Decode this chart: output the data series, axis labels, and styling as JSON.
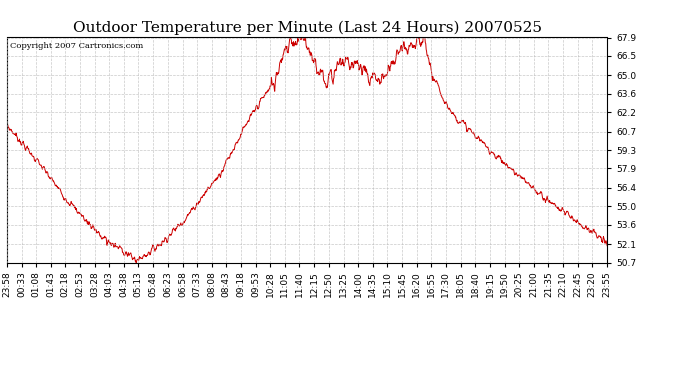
{
  "title": "Outdoor Temperature per Minute (Last 24 Hours) 20070525",
  "copyright_text": "Copyright 2007 Cartronics.com",
  "line_color": "#cc0000",
  "background_color": "#ffffff",
  "plot_bg_color": "#ffffff",
  "grid_color": "#bbbbbb",
  "ylim": [
    50.7,
    67.9
  ],
  "yticks": [
    50.7,
    52.1,
    53.6,
    55.0,
    56.4,
    57.9,
    59.3,
    60.7,
    62.2,
    63.6,
    65.0,
    66.5,
    67.9
  ],
  "title_fontsize": 11,
  "tick_fontsize": 6.5,
  "copyright_fontsize": 6,
  "x_tick_labels": [
    "23:58",
    "00:33",
    "01:08",
    "01:43",
    "02:18",
    "02:53",
    "03:28",
    "04:03",
    "04:38",
    "05:13",
    "05:48",
    "06:23",
    "06:58",
    "07:33",
    "08:08",
    "08:43",
    "09:18",
    "09:53",
    "10:28",
    "11:05",
    "11:40",
    "12:15",
    "12:50",
    "13:25",
    "14:00",
    "14:35",
    "15:10",
    "15:45",
    "16:20",
    "16:55",
    "17:30",
    "18:05",
    "18:40",
    "19:15",
    "19:50",
    "20:25",
    "21:00",
    "21:35",
    "22:10",
    "22:45",
    "23:20",
    "23:55"
  ],
  "keypoints_t": [
    0.0,
    0.05,
    0.1,
    0.155,
    0.195,
    0.215,
    0.225,
    0.24,
    0.265,
    0.3,
    0.355,
    0.39,
    0.415,
    0.445,
    0.47,
    0.495,
    0.515,
    0.535,
    0.555,
    0.575,
    0.6,
    0.625,
    0.655,
    0.685,
    0.695,
    0.71,
    0.74,
    0.8,
    0.86,
    0.9,
    0.94,
    0.97,
    1.0
  ],
  "keypoints_v": [
    61.2,
    58.5,
    55.5,
    52.8,
    51.5,
    50.95,
    51.1,
    51.6,
    52.5,
    54.2,
    57.5,
    60.5,
    62.5,
    64.5,
    67.5,
    67.8,
    65.8,
    64.5,
    65.8,
    66.2,
    65.0,
    64.6,
    66.8,
    67.4,
    67.5,
    64.8,
    62.2,
    59.5,
    57.0,
    55.5,
    54.2,
    53.2,
    52.1
  ],
  "noise_seed": 7,
  "noise_std": 0.25,
  "peak_noise_std": 0.55,
  "n_points": 1440
}
